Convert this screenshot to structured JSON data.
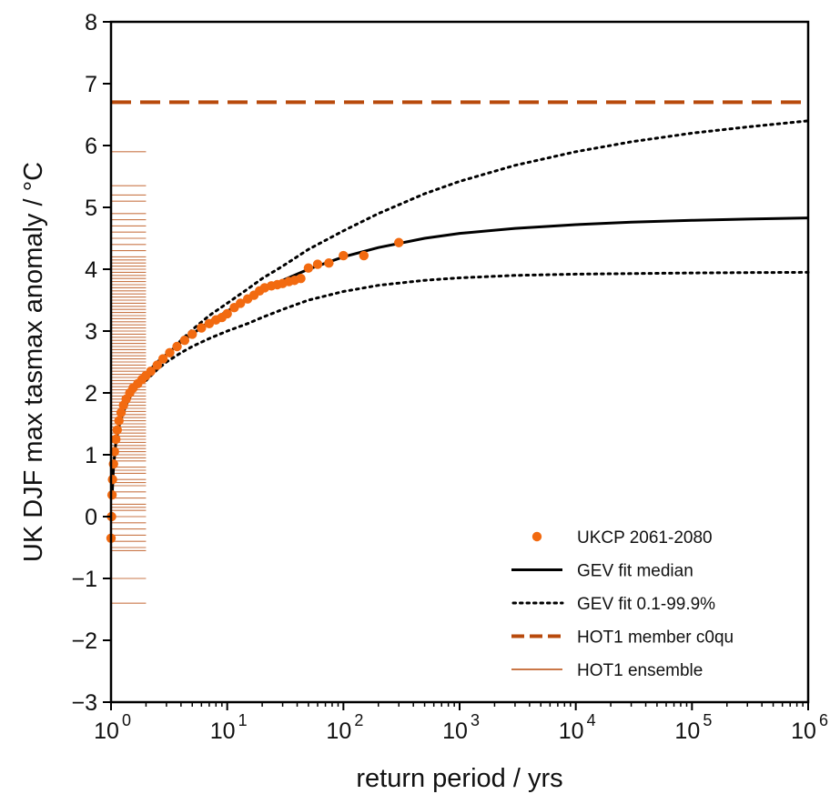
{
  "chart_data": {
    "type": "scatter",
    "xlabel": "return period / yrs",
    "ylabel": "UK DJF max tasmax anomaly / °C",
    "x_scale": "log",
    "xlim": [
      1,
      1000000
    ],
    "ylim": [
      -3,
      8
    ],
    "grid": false,
    "x_ticks": [
      {
        "value": 1,
        "base": "10",
        "exp": "0"
      },
      {
        "value": 10,
        "base": "10",
        "exp": "1"
      },
      {
        "value": 100,
        "base": "10",
        "exp": "2"
      },
      {
        "value": 1000,
        "base": "10",
        "exp": "3"
      },
      {
        "value": 10000,
        "base": "10",
        "exp": "4"
      },
      {
        "value": 100000,
        "base": "10",
        "exp": "5"
      },
      {
        "value": 1000000,
        "base": "10",
        "exp": "6"
      }
    ],
    "y_ticks": [
      {
        "value": -3,
        "label": "−3"
      },
      {
        "value": -2,
        "label": "−2"
      },
      {
        "value": -1,
        "label": "−1"
      },
      {
        "value": 0,
        "label": "0"
      },
      {
        "value": 1,
        "label": "1"
      },
      {
        "value": 2,
        "label": "2"
      },
      {
        "value": 3,
        "label": "3"
      },
      {
        "value": 4,
        "label": "4"
      },
      {
        "value": 5,
        "label": "5"
      },
      {
        "value": 6,
        "label": "6"
      },
      {
        "value": 7,
        "label": "7"
      },
      {
        "value": 8,
        "label": "8"
      }
    ],
    "legend_position": "lower-right",
    "series": [
      {
        "name": "UKCP 2061-2080",
        "kind": "scatter",
        "color": "#f26a10",
        "x": [
          1.0,
          1.01,
          1.02,
          1.03,
          1.05,
          1.07,
          1.1,
          1.13,
          1.17,
          1.22,
          1.28,
          1.35,
          1.45,
          1.55,
          1.7,
          1.85,
          2.0,
          2.2,
          2.5,
          2.8,
          3.2,
          3.7,
          4.3,
          5.0,
          6.0,
          7.0,
          8.0,
          9.0,
          10.0,
          11.5,
          13.0,
          15.0,
          17.0,
          19.0,
          21.0,
          24.0,
          27.0,
          30.0,
          34.0,
          38.0,
          43.0,
          50.0,
          60.0,
          75.0,
          100.0,
          150.0,
          300.0
        ],
        "y": [
          -0.35,
          0.0,
          0.35,
          0.6,
          0.85,
          1.05,
          1.25,
          1.4,
          1.55,
          1.68,
          1.8,
          1.9,
          2.0,
          2.08,
          2.15,
          2.22,
          2.28,
          2.35,
          2.45,
          2.55,
          2.65,
          2.75,
          2.85,
          2.95,
          3.05,
          3.12,
          3.18,
          3.22,
          3.28,
          3.38,
          3.45,
          3.52,
          3.58,
          3.65,
          3.7,
          3.73,
          3.75,
          3.77,
          3.8,
          3.82,
          3.85,
          4.02,
          4.08,
          4.1,
          4.22,
          4.22,
          4.43
        ]
      },
      {
        "name": "GEV fit median",
        "kind": "line",
        "style": "solid",
        "color": "#000000",
        "x": [
          1.02,
          1.05,
          1.1,
          1.2,
          1.35,
          1.5,
          1.75,
          2.0,
          2.5,
          3.0,
          4.0,
          5.0,
          7.0,
          10.0,
          15.0,
          20.0,
          30.0,
          50.0,
          100.0,
          200.0,
          500.0,
          1000.0,
          3000.0,
          10000.0,
          30000.0,
          100000.0,
          300000.0,
          1000000.0
        ],
        "y": [
          0.3,
          0.8,
          1.2,
          1.55,
          1.8,
          1.98,
          2.15,
          2.3,
          2.5,
          2.62,
          2.82,
          2.95,
          3.15,
          3.32,
          3.52,
          3.65,
          3.82,
          4.0,
          4.2,
          4.35,
          4.5,
          4.58,
          4.66,
          4.72,
          4.76,
          4.79,
          4.81,
          4.83
        ]
      },
      {
        "name": "GEV fit 0.1-99.9%",
        "kind": "line",
        "style": "dotted",
        "color": "#000000",
        "band": [
          {
            "x": [
              1.5,
              2.0,
              2.5,
              3.0,
              4.0,
              5.0,
              7.0,
              10.0,
              15.0,
              20.0,
              30.0,
              50.0,
              100.0,
              200.0,
              500.0,
              1000.0,
              3000.0,
              10000.0,
              30000.0,
              100000.0,
              300000.0,
              1000000.0
            ],
            "y": [
              2.05,
              2.25,
              2.48,
              2.62,
              2.85,
              3.02,
              3.25,
              3.45,
              3.68,
              3.85,
              4.05,
              4.32,
              4.62,
              4.9,
              5.22,
              5.42,
              5.68,
              5.9,
              6.06,
              6.2,
              6.3,
              6.4
            ]
          },
          {
            "x": [
              2.0,
              2.5,
              3.0,
              4.0,
              5.0,
              7.0,
              10.0,
              15.0,
              20.0,
              30.0,
              50.0,
              100.0,
              200.0,
              500.0,
              1000.0,
              3000.0,
              10000.0,
              30000.0,
              100000.0,
              300000.0,
              1000000.0
            ],
            "y": [
              2.2,
              2.38,
              2.5,
              2.65,
              2.75,
              2.88,
              3.0,
              3.12,
              3.22,
              3.35,
              3.5,
              3.64,
              3.74,
              3.82,
              3.86,
              3.9,
              3.92,
              3.93,
              3.94,
              3.945,
              3.95
            ]
          }
        ]
      },
      {
        "name": "HOT1 member c0qu",
        "kind": "hline",
        "style": "dashed",
        "color": "#b84a0c",
        "y": 6.7
      },
      {
        "name": "HOT1 ensemble",
        "kind": "rug",
        "color": "#b84a0c",
        "x_range": [
          1,
          2
        ],
        "y": [
          -1.4,
          -1.0,
          -0.55,
          -0.5,
          -0.4,
          -0.3,
          -0.2,
          -0.1,
          0.0,
          0.1,
          0.15,
          0.2,
          0.3,
          0.4,
          0.5,
          0.55,
          0.6,
          0.7,
          0.75,
          0.8,
          0.9,
          0.95,
          1.0,
          1.05,
          1.1,
          1.15,
          1.2,
          1.25,
          1.3,
          1.35,
          1.4,
          1.45,
          1.5,
          1.55,
          1.6,
          1.65,
          1.7,
          1.75,
          1.8,
          1.85,
          1.9,
          1.95,
          2.0,
          2.05,
          2.1,
          2.15,
          2.2,
          2.25,
          2.3,
          2.35,
          2.4,
          2.45,
          2.5,
          2.55,
          2.6,
          2.65,
          2.7,
          2.75,
          2.8,
          2.85,
          2.9,
          2.95,
          3.0,
          3.05,
          3.1,
          3.15,
          3.2,
          3.25,
          3.3,
          3.35,
          3.4,
          3.45,
          3.5,
          3.55,
          3.6,
          3.65,
          3.7,
          3.75,
          3.8,
          3.85,
          3.9,
          3.95,
          4.0,
          4.05,
          4.1,
          4.15,
          4.2,
          4.3,
          4.4,
          4.5,
          4.6,
          4.7,
          4.8,
          4.9,
          5.1,
          5.2,
          5.35,
          5.9
        ]
      }
    ]
  }
}
